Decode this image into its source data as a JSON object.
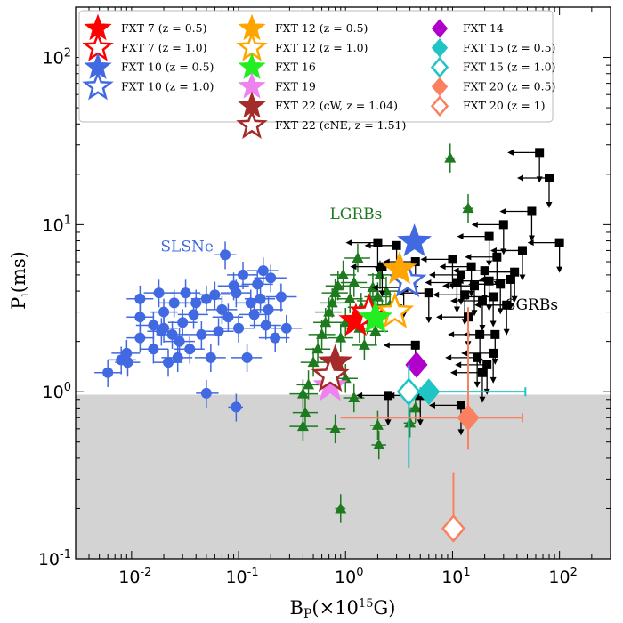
{
  "chart_data": {
    "type": "scatter",
    "xscale": "log",
    "yscale": "log",
    "xlim": [
      0.003,
      300
    ],
    "ylim": [
      0.1,
      200
    ],
    "xlabel": "B_P(×10^15 G)",
    "ylabel": "P_i(ms)",
    "x_ticks": [
      "10-2",
      "10-1",
      "100",
      "101",
      "102"
    ],
    "y_ticks": [
      "10-1",
      "100",
      "101",
      "102"
    ],
    "shaded_region": {
      "y_from": 0.1,
      "y_to": 0.96,
      "color": "#d3d3d3"
    },
    "colors": {
      "slsne": "#4169e1",
      "lgrb": "#1e7a1e",
      "sgrb": "#000000"
    },
    "population_labels": [
      {
        "text": "SLSNe",
        "x": 0.033,
        "y": 6.9,
        "color": "#4169e1"
      },
      {
        "text": "LGRBs",
        "x": 1.25,
        "y": 10.8,
        "color": "#1e7a1e"
      },
      {
        "text": "SGRBs",
        "x": 55,
        "y": 3.1,
        "color": "#000000"
      }
    ],
    "slsne": [
      [
        0.006,
        1.3,
        0.0045,
        0.008
      ],
      [
        0.008,
        1.55,
        0.006,
        0.011
      ],
      [
        0.009,
        1.7,
        0.0065,
        0.012
      ],
      [
        0.0092,
        1.5,
        0.007,
        0.012
      ],
      [
        0.012,
        2.1,
        0.009,
        0.016
      ],
      [
        0.012,
        2.8,
        0.009,
        0.016
      ],
      [
        0.012,
        3.6,
        0.009,
        0.016
      ],
      [
        0.016,
        1.8,
        0.012,
        0.022
      ],
      [
        0.016,
        2.5,
        0.011,
        0.022
      ],
      [
        0.018,
        3.9,
        0.013,
        0.025
      ],
      [
        0.019,
        2.3,
        0.014,
        0.026
      ],
      [
        0.02,
        2.4,
        0.015,
        0.027
      ],
      [
        0.02,
        3,
        0.015,
        0.027
      ],
      [
        0.022,
        1.5,
        0.016,
        0.03
      ],
      [
        0.024,
        2.2,
        0.017,
        0.033
      ],
      [
        0.025,
        3.4,
        0.018,
        0.034
      ],
      [
        0.027,
        1.6,
        0.019,
        0.037
      ],
      [
        0.028,
        2,
        0.02,
        0.039
      ],
      [
        0.03,
        2.6,
        0.022,
        0.041
      ],
      [
        0.032,
        3.9,
        0.023,
        0.044
      ],
      [
        0.035,
        1.8,
        0.025,
        0.048
      ],
      [
        0.038,
        2.9,
        0.027,
        0.052
      ],
      [
        0.04,
        3.4,
        0.028,
        0.055
      ],
      [
        0.045,
        2.2,
        0.032,
        0.062
      ],
      [
        0.05,
        3.6,
        0.036,
        0.069
      ],
      [
        0.055,
        1.6,
        0.039,
        0.076
      ],
      [
        0.06,
        3.8,
        0.043,
        0.083
      ],
      [
        0.065,
        2.3,
        0.046,
        0.09
      ],
      [
        0.07,
        3.1,
        0.05,
        0.097
      ],
      [
        0.075,
        6.6,
        0.06,
        0.095
      ],
      [
        0.08,
        2.8,
        0.057,
        0.11
      ],
      [
        0.09,
        4.3,
        0.064,
        0.125
      ],
      [
        0.095,
        3.9,
        0.068,
        0.13
      ],
      [
        0.1,
        2.4,
        0.071,
        0.138
      ],
      [
        0.11,
        5,
        0.078,
        0.15
      ],
      [
        0.12,
        1.6,
        0.085,
        0.165
      ],
      [
        0.13,
        3.4,
        0.093,
        0.18
      ],
      [
        0.14,
        2.9,
        0.1,
        0.19
      ],
      [
        0.15,
        4.4,
        0.107,
        0.21
      ],
      [
        0.16,
        3.6,
        0.114,
        0.22
      ],
      [
        0.17,
        5.3,
        0.12,
        0.235
      ],
      [
        0.18,
        2.5,
        0.128,
        0.25
      ],
      [
        0.19,
        3.1,
        0.135,
        0.26
      ],
      [
        0.2,
        4.8,
        0.14,
        0.28
      ],
      [
        0.22,
        2.1,
        0.155,
        0.3
      ],
      [
        0.25,
        3.7,
        0.18,
        0.35
      ],
      [
        0.28,
        2.4,
        0.2,
        0.39
      ],
      [
        0.05,
        0.98,
        0.04,
        0.065
      ],
      [
        0.095,
        0.81,
        0.08,
        0.11
      ]
    ],
    "lgrb": [
      [
        0.4,
        0.62,
        0.3,
        0.55
      ],
      [
        0.42,
        0.75,
        0.32,
        0.55
      ],
      [
        0.4,
        0.97,
        0.3,
        0.55
      ],
      [
        0.45,
        1.1,
        0.35,
        0.6
      ],
      [
        0.5,
        1.5,
        0.38,
        0.65
      ],
      [
        0.55,
        1.8,
        0.42,
        0.72
      ],
      [
        0.6,
        2.2,
        0.45,
        0.8
      ],
      [
        0.65,
        2.6,
        0.5,
        0.85
      ],
      [
        0.7,
        3,
        0.52,
        0.92
      ],
      [
        0.75,
        3.4,
        0.57,
        0.98
      ],
      [
        0.8,
        3.9,
        0.6,
        1.05
      ],
      [
        0.85,
        4.3,
        0.65,
        1.1
      ],
      [
        0.9,
        2.1,
        0.68,
        1.18
      ],
      [
        0.95,
        5,
        0.72,
        1.25
      ],
      [
        1,
        1.2,
        0.76,
        1.3
      ],
      [
        1,
        2.6,
        0.76,
        1.3
      ],
      [
        1.1,
        3.6,
        0.83,
        1.45
      ],
      [
        1.2,
        4.5,
        0.9,
        1.58
      ],
      [
        1.3,
        6.3,
        0.98,
        1.7
      ],
      [
        1.35,
        2.4,
        1,
        1.75
      ],
      [
        1.4,
        3.2,
        1.05,
        1.85
      ],
      [
        1.5,
        1.9,
        1.14,
        1.97
      ],
      [
        1.6,
        2.7,
        1.2,
        2.1
      ],
      [
        1.7,
        3.5,
        1.28,
        2.25
      ],
      [
        1.8,
        4.2,
        1.36,
        2.37
      ],
      [
        1.9,
        2.3,
        1.44,
        2.5
      ],
      [
        2,
        3.7,
        1.5,
        2.65
      ],
      [
        2.1,
        5,
        1.6,
        2.78
      ],
      [
        2.2,
        2.9,
        1.67,
        2.9
      ],
      [
        2.4,
        4,
        1.8,
        3.2
      ],
      [
        2.6,
        3.3,
        1.96,
        3.4
      ],
      [
        1.2,
        0.92,
        0.95,
        1.5
      ],
      [
        2,
        0.63,
        1.7,
        2.4
      ],
      [
        2.05,
        0.48,
        1.75,
        2.4
      ],
      [
        0.8,
        0.6,
        0.65,
        1
      ],
      [
        0.9,
        0.2,
        0.8,
        1
      ],
      [
        9.5,
        25,
        8.5,
        10.5
      ],
      [
        14,
        12.5,
        12.5,
        15.5
      ],
      [
        4,
        0.65,
        3.5,
        4.5
      ],
      [
        4.5,
        0.8,
        4,
        5
      ]
    ],
    "sgrbs": [
      [
        2,
        7.8
      ],
      [
        2.2,
        5.6
      ],
      [
        3,
        7.5
      ],
      [
        3.5,
        4.2
      ],
      [
        4.5,
        6
      ],
      [
        6,
        3.9
      ],
      [
        10,
        6.2
      ],
      [
        11,
        4.5
      ],
      [
        12,
        5
      ],
      [
        13,
        3.8
      ],
      [
        14,
        2.8
      ],
      [
        15,
        5.6
      ],
      [
        16,
        4.3
      ],
      [
        18,
        2.2
      ],
      [
        19,
        3.5
      ],
      [
        20,
        5.3
      ],
      [
        22,
        4.6
      ],
      [
        22,
        8.5
      ],
      [
        24,
        3.7
      ],
      [
        25,
        2.2
      ],
      [
        26,
        6.4
      ],
      [
        28,
        4.4
      ],
      [
        30,
        10
      ],
      [
        32,
        3.3
      ],
      [
        35,
        4.7
      ],
      [
        38,
        5.2
      ],
      [
        45,
        7
      ],
      [
        55,
        12
      ],
      [
        65,
        27
      ],
      [
        80,
        19
      ],
      [
        100,
        7.8
      ],
      [
        17,
        1.6
      ],
      [
        19,
        1.3
      ],
      [
        21,
        1.45
      ],
      [
        24,
        1.7
      ],
      [
        4.5,
        1.9
      ],
      [
        5,
        0.95
      ],
      [
        2.5,
        0.95
      ],
      [
        12,
        0.83
      ]
    ],
    "legend": [
      {
        "label": "FXT 7 (z = 0.5)",
        "marker": "star",
        "color": "#ff0000",
        "filled": true
      },
      {
        "label": "FXT 7 (z = 1.0)",
        "marker": "star",
        "color": "#ff0000",
        "filled": false
      },
      {
        "label": "FXT 10 (z = 0.5)",
        "marker": "star",
        "color": "#4169e1",
        "filled": true
      },
      {
        "label": "FXT 10 (z = 1.0)",
        "marker": "star",
        "color": "#4169e1",
        "filled": false
      },
      {
        "label": "FXT 12 (z = 0.5)",
        "marker": "star",
        "color": "#ffa500",
        "filled": true
      },
      {
        "label": "FXT 12 (z = 1.0)",
        "marker": "star",
        "color": "#ffa500",
        "filled": false
      },
      {
        "label": "FXT 16",
        "marker": "star",
        "color": "#22ee22",
        "filled": true
      },
      {
        "label": "FXT 19",
        "marker": "star",
        "color": "#ee82ee",
        "filled": true
      },
      {
        "label": "FXT 22 (cW, z = 1.04)",
        "marker": "star",
        "color": "#a52a2a",
        "filled": true
      },
      {
        "label": "FXT 22 (cNE, z = 1.51)",
        "marker": "star",
        "color": "#a52a2a",
        "filled": false
      },
      {
        "label": "FXT 14",
        "marker": "diamond",
        "color": "#b200cc",
        "filled": true
      },
      {
        "label": "FXT 15 (z = 0.5)",
        "marker": "diamond",
        "color": "#1fc4c4",
        "filled": true
      },
      {
        "label": "FXT 15 (z = 1.0)",
        "marker": "diamond",
        "color": "#1fc4c4",
        "filled": false
      },
      {
        "label": "FXT 20 (z = 0.5)",
        "marker": "diamond",
        "color": "#fa8060",
        "filled": true
      },
      {
        "label": "FXT 20 (z = 1)",
        "marker": "diamond",
        "color": "#fa8060",
        "filled": false
      }
    ],
    "fxts": [
      {
        "x": 1.25,
        "y": 2.65,
        "marker": "star",
        "color": "#ff0000",
        "filled": true
      },
      {
        "x": 1.65,
        "y": 2.95,
        "marker": "star",
        "color": "#ff0000",
        "filled": false
      },
      {
        "x": 4.4,
        "y": 7.9,
        "marker": "star",
        "color": "#4169e1",
        "filled": true
      },
      {
        "x": 3.8,
        "y": 4.6,
        "marker": "star",
        "color": "#4169e1",
        "filled": false
      },
      {
        "x": 3.2,
        "y": 5.4,
        "marker": "star",
        "color": "#ffa500",
        "filled": true
      },
      {
        "x": 2.9,
        "y": 3.0,
        "marker": "star",
        "color": "#ffa500",
        "filled": false
      },
      {
        "x": 1.9,
        "y": 2.75,
        "marker": "star",
        "color": "#22ee22",
        "filled": true
      },
      {
        "x": 0.72,
        "y": 1.08,
        "marker": "star",
        "color": "#ee82ee",
        "filled": true
      },
      {
        "x": 0.8,
        "y": 1.5,
        "marker": "star",
        "color": "#a52a2a",
        "filled": true
      },
      {
        "x": 0.72,
        "y": 1.25,
        "marker": "star",
        "color": "#a52a2a",
        "filled": false
      },
      {
        "x": 4.6,
        "y": 1.45,
        "marker": "diamond",
        "color": "#b200cc",
        "filled": true
      },
      {
        "x": 6,
        "y": 1.0,
        "marker": "diamond",
        "color": "#1fc4c4",
        "filled": true,
        "xerr": [
          4.8,
          48
        ],
        "yerr": [
          0.92,
          1.07
        ]
      },
      {
        "x": 3.9,
        "y": 1.0,
        "marker": "diamond",
        "color": "#1fc4c4",
        "filled": false,
        "xerr": [
          3.3,
          5
        ],
        "yerr": [
          0.35,
          1.45
        ]
      },
      {
        "x": 14,
        "y": 0.7,
        "marker": "diamond",
        "color": "#fa8060",
        "filled": true,
        "xerr": [
          0.9,
          45
        ],
        "yerr": [
          0.45,
          3.2
        ]
      },
      {
        "x": 10.2,
        "y": 0.152,
        "marker": "diamond",
        "color": "#fa8060",
        "filled": false,
        "yerr": [
          0.152,
          0.33
        ]
      }
    ]
  }
}
